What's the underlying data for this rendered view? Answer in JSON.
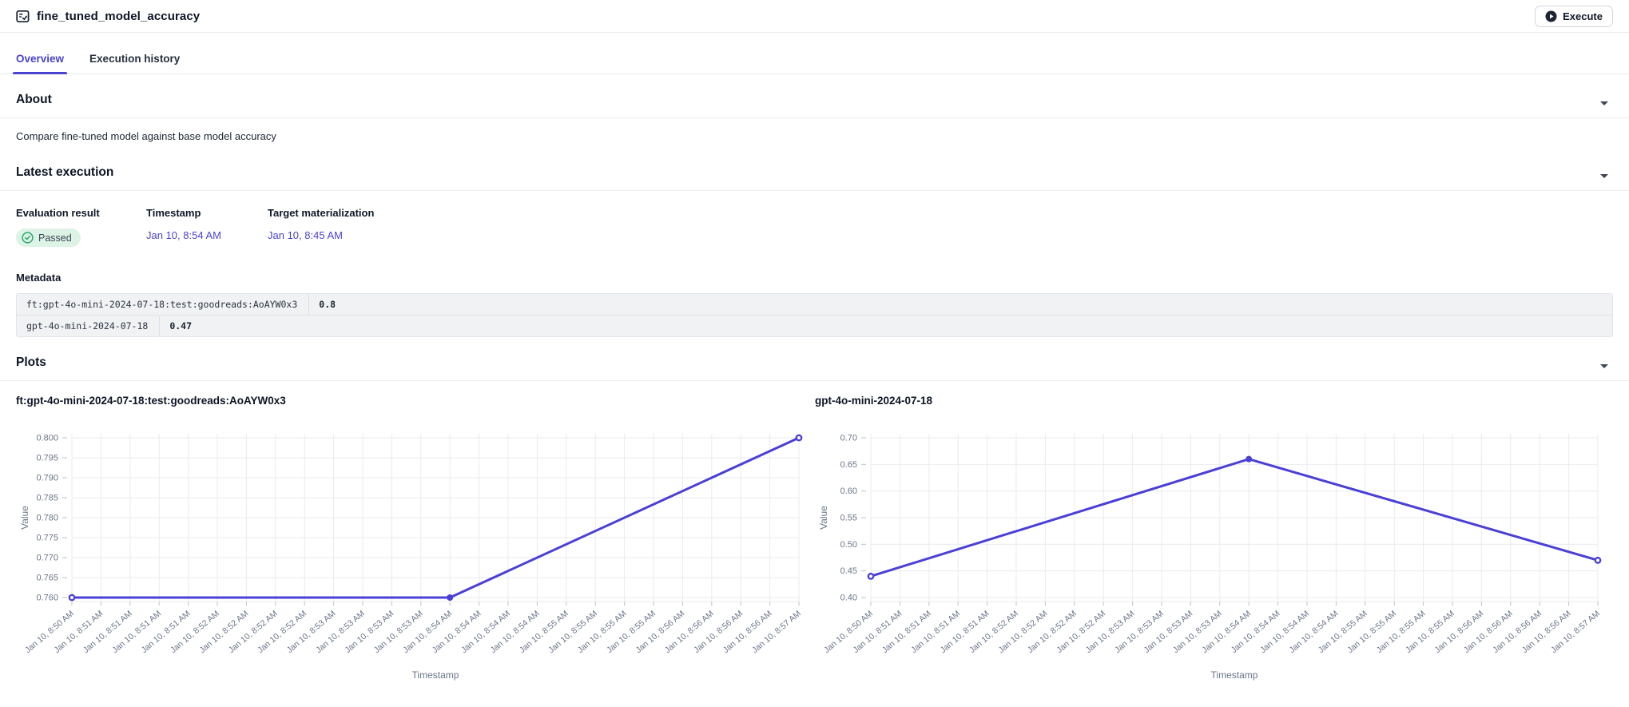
{
  "header": {
    "title": "fine_tuned_model_accuracy",
    "execute_label": "Execute"
  },
  "tabs": {
    "overview": "Overview",
    "execution_history": "Execution history"
  },
  "about": {
    "heading": "About",
    "description": "Compare fine-tuned model against base model accuracy"
  },
  "latest_execution": {
    "heading": "Latest execution",
    "evaluation_result_label": "Evaluation result",
    "evaluation_result_value": "Passed",
    "timestamp_label": "Timestamp",
    "timestamp_value": "Jan 10, 8:54 AM",
    "target_materialization_label": "Target materialization",
    "target_materialization_value": "Jan 10, 8:45 AM",
    "metadata_heading": "Metadata",
    "metadata_rows": [
      {
        "key": "ft:gpt-4o-mini-2024-07-18:test:goodreads:AoAYW0x3",
        "value": "0.8"
      },
      {
        "key": "gpt-4o-mini-2024-07-18",
        "value": "0.47"
      }
    ]
  },
  "plots": {
    "heading": "Plots"
  },
  "colors": {
    "accent": "#4a43cf",
    "line": "#4b40d6",
    "passed_badge_bg": "#ddf3e6",
    "passed_icon": "#2ca86b",
    "grid": "#e9ebef",
    "tick_label": "#6b7589"
  },
  "chart_data": [
    {
      "type": "line",
      "title": "ft:gpt-4o-mini-2024-07-18:test:goodreads:AoAYW0x3",
      "xlabel": "Timestamp",
      "ylabel": "Value",
      "ylim": [
        0.76,
        0.8
      ],
      "yticks": [
        0.76,
        0.765,
        0.77,
        0.775,
        0.78,
        0.785,
        0.79,
        0.795,
        0.8
      ],
      "ytick_decimals": 3,
      "categories": [
        "Jan 10, 8:50 AM",
        "Jan 10, 8:51 AM",
        "Jan 10, 8:51 AM",
        "Jan 10, 8:51 AM",
        "Jan 10, 8:51 AM",
        "Jan 10, 8:52 AM",
        "Jan 10, 8:52 AM",
        "Jan 10, 8:52 AM",
        "Jan 10, 8:52 AM",
        "Jan 10, 8:53 AM",
        "Jan 10, 8:53 AM",
        "Jan 10, 8:53 AM",
        "Jan 10, 8:53 AM",
        "Jan 10, 8:54 AM",
        "Jan 10, 8:54 AM",
        "Jan 10, 8:54 AM",
        "Jan 10, 8:54 AM",
        "Jan 10, 8:55 AM",
        "Jan 10, 8:55 AM",
        "Jan 10, 8:55 AM",
        "Jan 10, 8:55 AM",
        "Jan 10, 8:56 AM",
        "Jan 10, 8:56 AM",
        "Jan 10, 8:56 AM",
        "Jan 10, 8:56 AM",
        "Jan 10, 8:57 AM"
      ],
      "points": [
        {
          "x": 0,
          "y": 0.76
        },
        {
          "x": 13,
          "y": 0.76
        },
        {
          "x": 25,
          "y": 0.8
        }
      ],
      "line_color": "#4b40d6"
    },
    {
      "type": "line",
      "title": "gpt-4o-mini-2024-07-18",
      "xlabel": "Timestamp",
      "ylabel": "Value",
      "ylim": [
        0.4,
        0.7
      ],
      "yticks": [
        0.4,
        0.45,
        0.5,
        0.55,
        0.6,
        0.65,
        0.7
      ],
      "ytick_decimals": 2,
      "categories": [
        "Jan 10, 8:50 AM",
        "Jan 10, 8:51 AM",
        "Jan 10, 8:51 AM",
        "Jan 10, 8:51 AM",
        "Jan 10, 8:51 AM",
        "Jan 10, 8:52 AM",
        "Jan 10, 8:52 AM",
        "Jan 10, 8:52 AM",
        "Jan 10, 8:52 AM",
        "Jan 10, 8:53 AM",
        "Jan 10, 8:53 AM",
        "Jan 10, 8:53 AM",
        "Jan 10, 8:53 AM",
        "Jan 10, 8:54 AM",
        "Jan 10, 8:54 AM",
        "Jan 10, 8:54 AM",
        "Jan 10, 8:54 AM",
        "Jan 10, 8:55 AM",
        "Jan 10, 8:55 AM",
        "Jan 10, 8:55 AM",
        "Jan 10, 8:55 AM",
        "Jan 10, 8:56 AM",
        "Jan 10, 8:56 AM",
        "Jan 10, 8:56 AM",
        "Jan 10, 8:56 AM",
        "Jan 10, 8:57 AM"
      ],
      "points": [
        {
          "x": 0,
          "y": 0.44
        },
        {
          "x": 13,
          "y": 0.66
        },
        {
          "x": 25,
          "y": 0.47
        }
      ],
      "line_color": "#4b40d6"
    }
  ]
}
